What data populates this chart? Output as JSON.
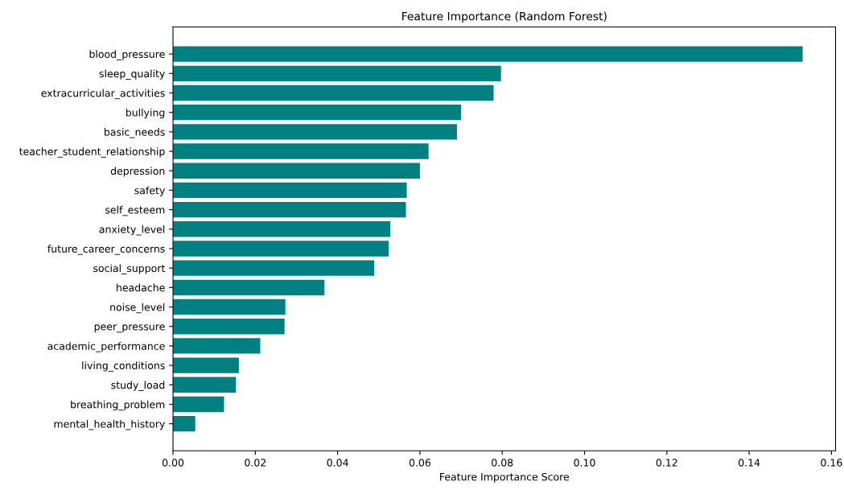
{
  "chart_data": {
    "type": "bar",
    "orientation": "horizontal",
    "title": "Feature Importance (Random Forest)",
    "xlabel": "Feature Importance Score",
    "categories": [
      "blood_pressure",
      "sleep_quality",
      "extracurricular_activities",
      "bullying",
      "basic_needs",
      "teacher_student_relationship",
      "depression",
      "safety",
      "self_esteem",
      "anxiety_level",
      "future_career_concerns",
      "social_support",
      "headache",
      "noise_level",
      "peer_pressure",
      "academic_performance",
      "living_conditions",
      "study_load",
      "breathing_problem",
      "mental_health_history"
    ],
    "values": [
      0.153,
      0.0797,
      0.0779,
      0.07,
      0.069,
      0.0621,
      0.06,
      0.0568,
      0.0566,
      0.0528,
      0.0524,
      0.0489,
      0.0368,
      0.0273,
      0.0271,
      0.0212,
      0.016,
      0.0153,
      0.0124,
      0.0054
    ],
    "color": "#008080",
    "xlim": [
      0,
      0.161
    ],
    "xticks": [
      {
        "value": 0,
        "label": "0.00"
      },
      {
        "value": 0.02,
        "label": "0.02"
      },
      {
        "value": 0.04,
        "label": "0.04"
      },
      {
        "value": 0.06,
        "label": "0.06"
      },
      {
        "value": 0.08,
        "label": "0.08"
      },
      {
        "value": 0.1,
        "label": "0.10"
      },
      {
        "value": 0.12,
        "label": "0.12"
      },
      {
        "value": 0.14,
        "label": "0.14"
      },
      {
        "value": 0.16,
        "label": "0.16"
      }
    ],
    "grid": false
  }
}
